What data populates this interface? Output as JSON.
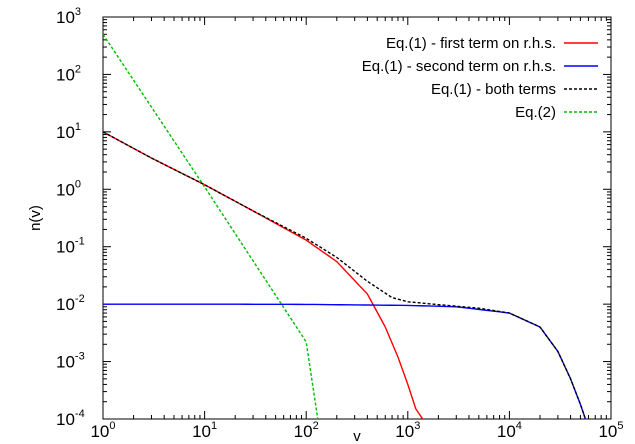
{
  "chart_data": {
    "type": "line",
    "title": "",
    "xlabel": "v",
    "ylabel": "n(v)",
    "xscale": "log",
    "yscale": "log",
    "xlim": [
      1,
      100000
    ],
    "ylim": [
      0.0001,
      1000
    ],
    "legend_position": "top-right",
    "grid": false,
    "x_ticks": [
      {
        "base": "10",
        "exp": "0",
        "value": 1
      },
      {
        "base": "10",
        "exp": "1",
        "value": 10
      },
      {
        "base": "10",
        "exp": "2",
        "value": 100
      },
      {
        "base": "10",
        "exp": "3",
        "value": 1000
      },
      {
        "base": "10",
        "exp": "4",
        "value": 10000
      },
      {
        "base": "10",
        "exp": "5",
        "value": 100000
      }
    ],
    "y_ticks": [
      {
        "base": "10",
        "exp": "-4",
        "value": 0.0001
      },
      {
        "base": "10",
        "exp": "-3",
        "value": 0.001
      },
      {
        "base": "10",
        "exp": "-2",
        "value": 0.01
      },
      {
        "base": "10",
        "exp": "-1",
        "value": 0.1
      },
      {
        "base": "10",
        "exp": "0",
        "value": 1
      },
      {
        "base": "10",
        "exp": "1",
        "value": 10
      },
      {
        "base": "10",
        "exp": "2",
        "value": 100
      },
      {
        "base": "10",
        "exp": "3",
        "value": 1000
      }
    ],
    "series": [
      {
        "name": "Eq.(1) - first term on r.h.s.",
        "color": "#ff0000",
        "dash": "solid",
        "x": [
          1,
          3,
          10,
          30,
          100,
          200,
          400,
          600,
          800,
          1000,
          1200,
          1400
        ],
        "y": [
          10,
          3.5,
          1.2,
          0.42,
          0.13,
          0.055,
          0.015,
          0.004,
          0.0012,
          0.0004,
          0.00015,
          0.0001
        ]
      },
      {
        "name": "Eq.(1) - second term on r.h.s.",
        "color": "#0000ff",
        "dash": "solid",
        "x": [
          1,
          10,
          100,
          1000,
          3000,
          10000,
          20000,
          30000,
          40000,
          50000,
          56000
        ],
        "y": [
          0.01,
          0.01,
          0.0099,
          0.0095,
          0.009,
          0.007,
          0.004,
          0.0015,
          0.0005,
          0.00018,
          0.0001
        ]
      },
      {
        "name": "Eq.(1) - both terms",
        "color": "#000000",
        "dash": "dashed",
        "x": [
          1,
          3,
          10,
          30,
          100,
          200,
          400,
          700,
          1000,
          2000,
          5000,
          10000,
          20000,
          30000,
          40000,
          50000,
          56000
        ],
        "y": [
          10,
          3.5,
          1.2,
          0.42,
          0.14,
          0.065,
          0.025,
          0.013,
          0.011,
          0.0098,
          0.0085,
          0.007,
          0.004,
          0.0015,
          0.0005,
          0.00018,
          0.0001
        ]
      },
      {
        "name": "Eq.(2)",
        "color": "#00bb00",
        "dash": "dashed",
        "x": [
          1,
          10,
          100,
          130
        ],
        "y": [
          500,
          1.1,
          0.0022,
          0.0001
        ]
      }
    ]
  }
}
